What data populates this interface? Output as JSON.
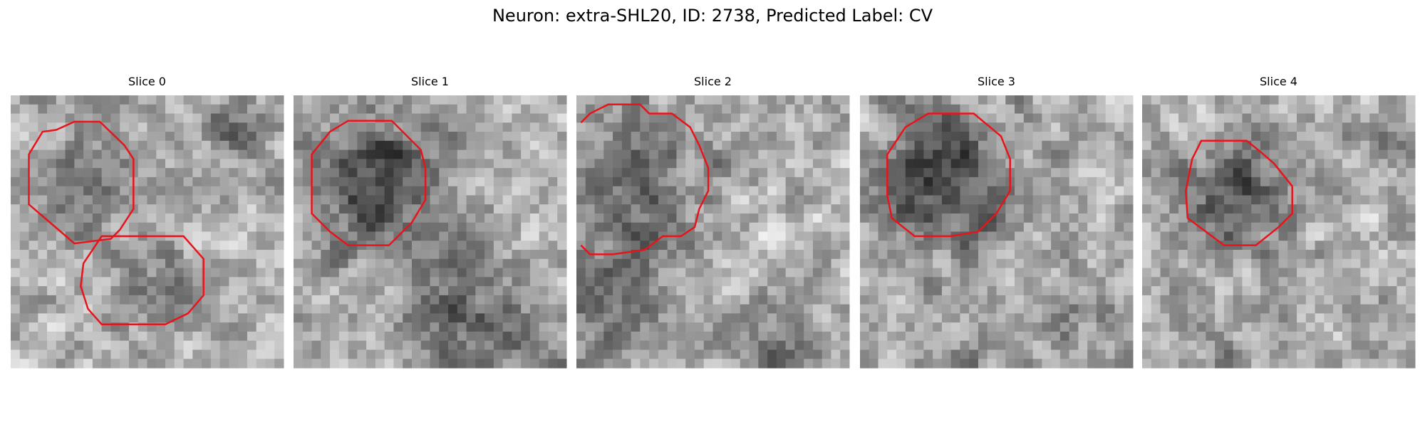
{
  "title": "Neuron: extra-SHL20, ID: 2738, Predicted Label: CV",
  "panels": [
    {
      "title": "Slice 0"
    },
    {
      "title": "Slice 1"
    },
    {
      "title": "Slice 2"
    },
    {
      "title": "Slice 3"
    },
    {
      "title": "Slice 4"
    }
  ]
}
